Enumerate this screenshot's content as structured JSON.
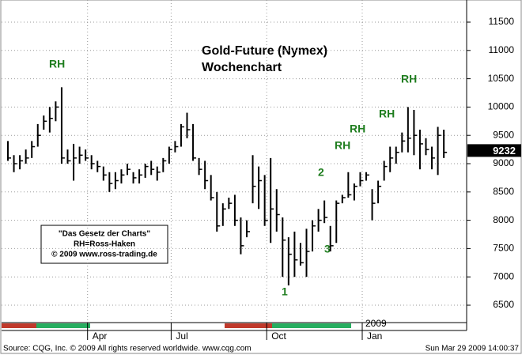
{
  "chart_data": {
    "type": "ohlc",
    "title": "Gold-Future (Nymex)",
    "subtitle": "Wochenchart",
    "categories": [
      null,
      null,
      null,
      null,
      null,
      null,
      null,
      null,
      null,
      null,
      null,
      null,
      null,
      null,
      "Apr",
      null,
      null,
      null,
      null,
      null,
      null,
      null,
      null,
      null,
      null,
      null,
      null,
      null,
      "Jul",
      null,
      null,
      null,
      null,
      null,
      null,
      null,
      null,
      null,
      null,
      null,
      null,
      null,
      null,
      null,
      "Oct",
      null,
      null,
      null,
      null,
      null,
      null,
      null,
      null,
      null,
      null,
      null,
      null,
      null,
      null,
      null,
      "Jan",
      null,
      null,
      null,
      null,
      null,
      null,
      null,
      null,
      null,
      null,
      null,
      null,
      null
    ],
    "high": [
      9400,
      9150,
      9150,
      9250,
      9400,
      9700,
      9850,
      10000,
      10100,
      10350,
      9250,
      9350,
      9300,
      9250,
      9150,
      9050,
      8950,
      8850,
      8850,
      8900,
      9000,
      8850,
      8900,
      9000,
      9050,
      8950,
      9100,
      9300,
      9400,
      9700,
      9900,
      9700,
      9100,
      9050,
      8800,
      8500,
      8300,
      8400,
      8450,
      8050,
      8000,
      9150,
      8950,
      8800,
      9100,
      8550,
      8050,
      7700,
      7800,
      7600,
      7850,
      8000,
      8200,
      8350,
      7900,
      8350,
      8450,
      8850,
      8650,
      8850,
      8850,
      8550,
      8700,
      9050,
      9300,
      9300,
      9550,
      10000,
      9950,
      9600,
      9450,
      9300,
      9650,
      9600
    ],
    "low": [
      9050,
      8850,
      8900,
      9000,
      9100,
      9300,
      9600,
      9550,
      9750,
      9000,
      9000,
      8700,
      9000,
      9050,
      8900,
      8850,
      8700,
      8500,
      8550,
      8650,
      8800,
      8650,
      8650,
      8750,
      8800,
      8700,
      8850,
      9000,
      9200,
      9300,
      9450,
      9050,
      8800,
      8550,
      8350,
      7800,
      7900,
      8200,
      7900,
      7400,
      7700,
      8300,
      8200,
      7900,
      7600,
      7800,
      7000,
      6850,
      7000,
      7200,
      7000,
      7450,
      7800,
      7950,
      7450,
      7600,
      8300,
      8400,
      8350,
      8600,
      8700,
      8000,
      8300,
      8700,
      8850,
      9000,
      9200,
      9200,
      9150,
      8900,
      9150,
      8900,
      8800,
      9100
    ],
    "close": [
      9100,
      9000,
      9050,
      9100,
      9300,
      9500,
      9750,
      9800,
      10000,
      9100,
      9050,
      9100,
      9150,
      9100,
      9000,
      8950,
      8800,
      8650,
      8700,
      8800,
      8900,
      8750,
      8800,
      8950,
      8900,
      8850,
      9050,
      9250,
      9300,
      9650,
      9600,
      9100,
      8900,
      8700,
      8400,
      7900,
      8200,
      8300,
      8000,
      7550,
      7800,
      8600,
      8700,
      8000,
      8200,
      8100,
      7650,
      7400,
      7300,
      7250,
      7450,
      7900,
      8000,
      8050,
      7550,
      8300,
      8400,
      8450,
      8600,
      8700,
      8800,
      8300,
      8600,
      8950,
      9100,
      9200,
      9400,
      9450,
      9500,
      9350,
      9250,
      9100,
      9500,
      9200
    ],
    "color": "#000000",
    "ylim": [
      6193,
      11891
    ],
    "yticks": [
      6500,
      7000,
      7500,
      8000,
      8500,
      9000,
      9500,
      10000,
      10500,
      11000,
      11500
    ],
    "grid": true,
    "last_price": 9232,
    "year_label": "2009",
    "annotations": [
      "RH",
      "RH",
      "RH",
      "RH",
      "RH",
      "1",
      "2",
      "3"
    ],
    "note": [
      "\"Das Gesetz der Charts\"",
      "RH=Ross-Haken",
      "© 2009 www.ross-trading.de"
    ]
  },
  "footer": {
    "source": "Source: CQG, Inc. © 2009 All rights reserved worldwide. www.cqg.com",
    "timestamp": "Sun Mar 29 2009 14:00:37"
  }
}
